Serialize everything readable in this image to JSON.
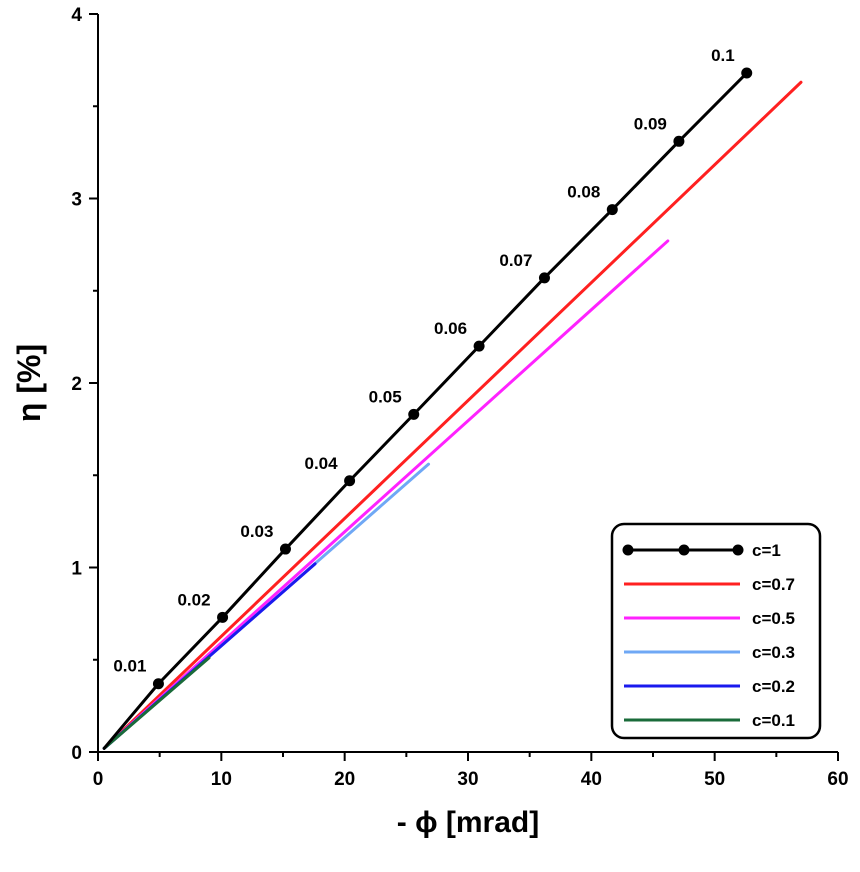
{
  "chart_data": {
    "type": "line",
    "xlabel": "- ϕ [mrad]",
    "ylabel": "η [%]",
    "xlim": [
      0,
      60
    ],
    "ylim": [
      0,
      4
    ],
    "x_ticks": [
      "0",
      "10",
      "20",
      "30",
      "40",
      "50",
      "60"
    ],
    "y_ticks": [
      "0",
      "1",
      "2",
      "3",
      "4"
    ],
    "grid": false,
    "legend_position": "bottom-right",
    "series": [
      {
        "name": "c=1",
        "color": "#000000",
        "markers": true,
        "x": [
          0.5,
          2.5,
          4.9,
          10.1,
          15.2,
          20.4,
          25.6,
          30.9,
          36.2,
          41.7,
          47.1,
          52.6
        ],
        "y": [
          0.02,
          0.18,
          0.37,
          0.73,
          1.1,
          1.47,
          1.83,
          2.2,
          2.57,
          2.94,
          3.31,
          3.68
        ],
        "point_labels": [
          "",
          "",
          "0.01",
          "0.02",
          "0.03",
          "0.04",
          "0.05",
          "0.06",
          "0.07",
          "0.08",
          "0.09",
          "0.1"
        ]
      },
      {
        "name": "c=0.7",
        "color": "#ff2020",
        "markers": false,
        "x": [
          0.5,
          57.0
        ],
        "y": [
          0.02,
          3.63
        ]
      },
      {
        "name": "c=0.5",
        "color": "#ff22ff",
        "markers": false,
        "x": [
          0.5,
          46.2
        ],
        "y": [
          0.02,
          2.77
        ]
      },
      {
        "name": "c=0.3",
        "color": "#6fa8f5",
        "markers": false,
        "x": [
          0.5,
          26.8
        ],
        "y": [
          0.02,
          1.56
        ]
      },
      {
        "name": "c=0.2",
        "color": "#1a1aee",
        "markers": false,
        "x": [
          0.5,
          17.6
        ],
        "y": [
          0.02,
          1.02
        ]
      },
      {
        "name": "c=0.1",
        "color": "#1a6b3a",
        "markers": false,
        "x": [
          0.5,
          9.0
        ],
        "y": [
          0.02,
          0.51
        ]
      }
    ]
  }
}
